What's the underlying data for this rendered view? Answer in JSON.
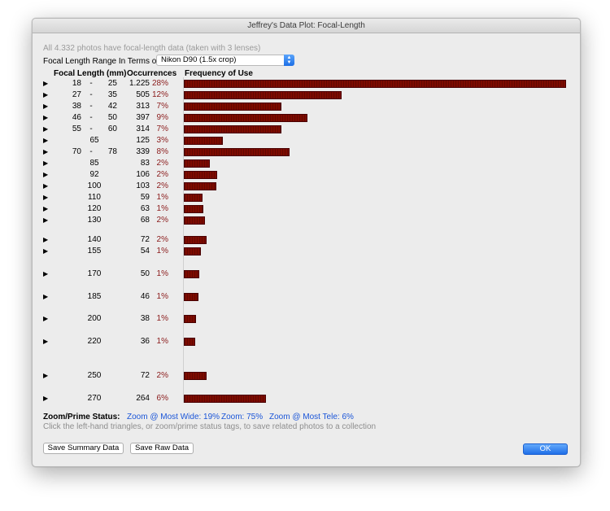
{
  "window": {
    "title": "Jeffrey's Data Plot: Focal-Length"
  },
  "summary": "All 4.332 photos have focal-length data (taken with 3 lenses)",
  "range": {
    "label": "Focal Length Range In Terms of:",
    "selected": "Nikon D90 (1.5x crop)"
  },
  "headers": {
    "focal": "Focal Length (mm)",
    "occ": "Occurrences",
    "freq": "Frequency of Use"
  },
  "rows": [
    {
      "lo": "18",
      "hi": "25",
      "occ": "1.225",
      "pct": "28%",
      "count": 1225
    },
    {
      "lo": "27",
      "hi": "35",
      "occ": "505",
      "pct": "12%",
      "count": 505
    },
    {
      "lo": "38",
      "hi": "42",
      "occ": "313",
      "pct": "7%",
      "count": 313
    },
    {
      "lo": "46",
      "hi": "50",
      "occ": "397",
      "pct": "9%",
      "count": 397
    },
    {
      "lo": "55",
      "hi": "60",
      "occ": "314",
      "pct": "7%",
      "count": 314
    },
    {
      "single": "65",
      "occ": "125",
      "pct": "3%",
      "count": 125
    },
    {
      "lo": "70",
      "hi": "78",
      "occ": "339",
      "pct": "8%",
      "count": 339
    },
    {
      "single": "85",
      "occ": "83",
      "pct": "2%",
      "count": 83
    },
    {
      "single": "92",
      "occ": "106",
      "pct": "2%",
      "count": 106
    },
    {
      "single": "100",
      "occ": "103",
      "pct": "2%",
      "count": 103
    },
    {
      "single": "110",
      "occ": "59",
      "pct": "1%",
      "count": 59
    },
    {
      "single": "120",
      "occ": "63",
      "pct": "1%",
      "count": 63
    },
    {
      "single": "130",
      "occ": "68",
      "pct": "2%",
      "count": 68
    },
    {
      "single": "140",
      "occ": "72",
      "pct": "2%",
      "count": 72
    },
    {
      "single": "155",
      "occ": "54",
      "pct": "1%",
      "count": 54
    },
    {
      "single": "170",
      "occ": "50",
      "pct": "1%",
      "count": 50
    },
    {
      "single": "185",
      "occ": "46",
      "pct": "1%",
      "count": 46
    },
    {
      "single": "200",
      "occ": "38",
      "pct": "1%",
      "count": 38
    },
    {
      "single": "220",
      "occ": "36",
      "pct": "1%",
      "count": 36
    },
    {
      "single": "250",
      "occ": "72",
      "pct": "2%",
      "count": 72
    },
    {
      "single": "270",
      "occ": "264",
      "pct": "6%",
      "count": 264
    }
  ],
  "status": {
    "label": "Zoom/Prime Status:",
    "wide": "Zoom @ Most Wide: 19%",
    "zoom": "Zoom: 75%",
    "tele": "Zoom @ Most Tele: 6%"
  },
  "hint": "Click the left-hand triangles, or zoom/prime status tags, to save related photos to a collection",
  "buttons": {
    "save_summary": "Save Summary Data",
    "save_raw": "Save Raw Data",
    "ok": "OK"
  },
  "colors": {
    "bar": "#7d0a00",
    "percent": "#8a1a1a",
    "link": "#1a55d8",
    "accent": "#1f6fe8"
  },
  "icons": {
    "row_triangle": "disclosure-triangle-icon"
  }
}
